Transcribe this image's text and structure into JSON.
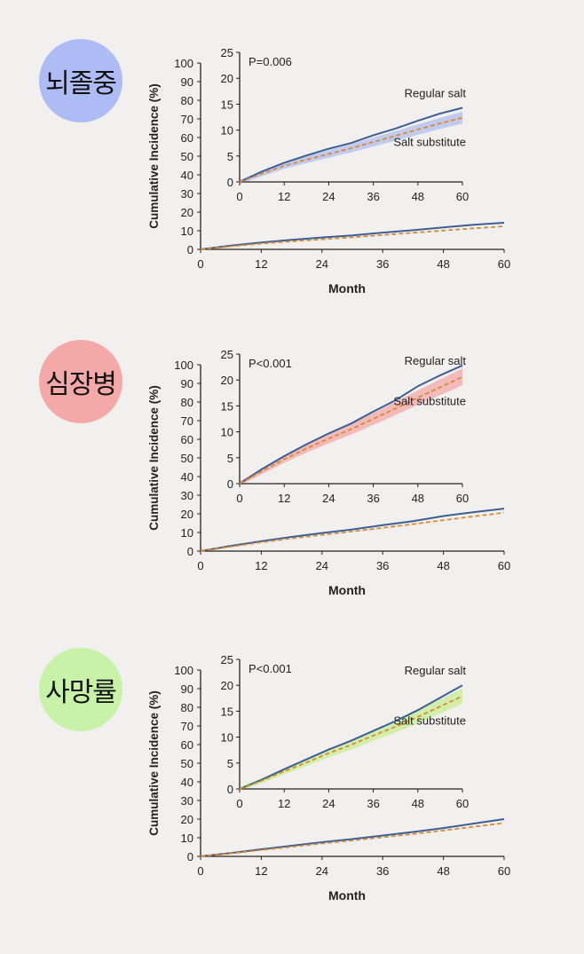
{
  "panels": [
    {
      "label": "뇌졸중",
      "color": "#aebcf6"
    },
    {
      "label": "심장병",
      "color": "#f5a8a8"
    },
    {
      "label": "사망률",
      "color": "#c8f2a8"
    }
  ],
  "chart_data": [
    {
      "type": "line",
      "panel_label": "뇌졸중",
      "xlabel": "Month",
      "ylabel": "Cumulative Incidence (%)",
      "xlim": [
        0,
        60
      ],
      "ylim": [
        0,
        100
      ],
      "xticks": [
        0,
        12,
        24,
        36,
        48,
        60
      ],
      "yticks": [
        0,
        10,
        20,
        30,
        40,
        50,
        60,
        70,
        80,
        90,
        100
      ],
      "series": [
        {
          "name": "Regular salt",
          "x": [
            0,
            6,
            12,
            18,
            24,
            30,
            36,
            42,
            48,
            54,
            60
          ],
          "values": [
            0,
            2.0,
            3.7,
            5.1,
            6.4,
            7.5,
            9.0,
            10.3,
            11.8,
            13.2,
            14.3
          ]
        },
        {
          "name": "Salt substitute",
          "x": [
            0,
            6,
            12,
            18,
            24,
            30,
            36,
            42,
            48,
            54,
            60
          ],
          "values": [
            0,
            1.6,
            3.1,
            4.3,
            5.4,
            6.5,
            7.7,
            8.9,
            10.1,
            11.3,
            12.4
          ]
        }
      ],
      "inset": {
        "annotation": "P=0.006",
        "xlim": [
          0,
          60
        ],
        "ylim": [
          0,
          25
        ],
        "xticks": [
          0,
          12,
          24,
          36,
          48,
          60
        ],
        "yticks": [
          0,
          5,
          10,
          15,
          20,
          25
        ],
        "band_color": "#b8c4f0",
        "series": [
          {
            "name": "Regular salt",
            "x": [
              0,
              6,
              12,
              18,
              24,
              30,
              36,
              42,
              48,
              54,
              60
            ],
            "values": [
              0,
              2.0,
              3.7,
              5.1,
              6.4,
              7.5,
              9.0,
              10.3,
              11.8,
              13.2,
              14.3
            ]
          },
          {
            "name": "Salt substitute",
            "x": [
              0,
              6,
              12,
              18,
              24,
              30,
              36,
              42,
              48,
              54,
              60
            ],
            "values": [
              0,
              1.6,
              3.1,
              4.3,
              5.4,
              6.5,
              7.7,
              8.9,
              10.1,
              11.3,
              12.4
            ]
          }
        ]
      }
    },
    {
      "type": "line",
      "panel_label": "심장병",
      "xlabel": "Month",
      "ylabel": "Cumulative Incidence (%)",
      "xlim": [
        0,
        60
      ],
      "ylim": [
        0,
        100
      ],
      "xticks": [
        0,
        12,
        24,
        36,
        48,
        60
      ],
      "yticks": [
        0,
        10,
        20,
        30,
        40,
        50,
        60,
        70,
        80,
        90,
        100
      ],
      "series": [
        {
          "name": "Regular salt",
          "x": [
            0,
            6,
            12,
            18,
            24,
            30,
            36,
            42,
            48,
            54,
            60
          ],
          "values": [
            0,
            2.8,
            5.3,
            7.6,
            9.7,
            11.6,
            13.9,
            16.1,
            18.8,
            20.9,
            22.8
          ]
        },
        {
          "name": "Salt substitute",
          "x": [
            0,
            6,
            12,
            18,
            24,
            30,
            36,
            42,
            48,
            54,
            60
          ],
          "values": [
            0,
            2.4,
            4.7,
            6.8,
            8.7,
            10.5,
            12.5,
            14.5,
            16.6,
            18.6,
            20.6
          ]
        }
      ],
      "inset": {
        "annotation": "P<0.001",
        "xlim": [
          0,
          60
        ],
        "ylim": [
          0,
          25
        ],
        "xticks": [
          0,
          12,
          24,
          36,
          48,
          60
        ],
        "yticks": [
          0,
          5,
          10,
          15,
          20,
          25
        ],
        "band_color": "#f2b0ae",
        "series": [
          {
            "name": "Regular salt",
            "x": [
              0,
              6,
              12,
              18,
              24,
              30,
              36,
              42,
              48,
              54,
              60
            ],
            "values": [
              0,
              2.8,
              5.3,
              7.6,
              9.7,
              11.6,
              13.9,
              16.1,
              18.8,
              20.9,
              22.8
            ]
          },
          {
            "name": "Salt substitute",
            "x": [
              0,
              6,
              12,
              18,
              24,
              30,
              36,
              42,
              48,
              54,
              60
            ],
            "values": [
              0,
              2.4,
              4.7,
              6.8,
              8.7,
              10.5,
              12.5,
              14.5,
              16.6,
              18.6,
              20.6
            ]
          }
        ]
      }
    },
    {
      "type": "line",
      "panel_label": "사망률",
      "xlabel": "Month",
      "ylabel": "Cumulative Incidence (%)",
      "xlim": [
        0,
        60
      ],
      "ylim": [
        0,
        100
      ],
      "xticks": [
        0,
        12,
        24,
        36,
        48,
        60
      ],
      "yticks": [
        0,
        10,
        20,
        30,
        40,
        50,
        60,
        70,
        80,
        90,
        100
      ],
      "series": [
        {
          "name": "Regular salt",
          "x": [
            0,
            6,
            12,
            18,
            24,
            30,
            36,
            42,
            48,
            54,
            60
          ],
          "values": [
            0,
            1.8,
            3.8,
            5.7,
            7.6,
            9.3,
            11.2,
            13.1,
            15.2,
            17.6,
            20.0
          ]
        },
        {
          "name": "Salt substitute",
          "x": [
            0,
            6,
            12,
            18,
            24,
            30,
            36,
            42,
            48,
            54,
            60
          ],
          "values": [
            0,
            1.6,
            3.4,
            5.1,
            6.9,
            8.5,
            10.3,
            12.0,
            13.9,
            15.9,
            17.9
          ]
        }
      ],
      "inset": {
        "annotation": "P<0.001",
        "xlim": [
          0,
          60
        ],
        "ylim": [
          0,
          25
        ],
        "xticks": [
          0,
          12,
          24,
          36,
          48,
          60
        ],
        "yticks": [
          0,
          5,
          10,
          15,
          20,
          25
        ],
        "band_color": "#ccef9e",
        "series": [
          {
            "name": "Regular salt",
            "x": [
              0,
              6,
              12,
              18,
              24,
              30,
              36,
              42,
              48,
              54,
              60
            ],
            "values": [
              0,
              1.8,
              3.8,
              5.7,
              7.6,
              9.3,
              11.2,
              13.1,
              15.2,
              17.6,
              20.0
            ]
          },
          {
            "name": "Salt substitute",
            "x": [
              0,
              6,
              12,
              18,
              24,
              30,
              36,
              42,
              48,
              54,
              60
            ],
            "values": [
              0,
              1.6,
              3.4,
              5.1,
              6.9,
              8.5,
              10.3,
              12.0,
              13.9,
              15.9,
              17.9
            ]
          }
        ]
      }
    }
  ],
  "colors": {
    "regular": "#3d5f94",
    "substitute": "#d98a35"
  }
}
